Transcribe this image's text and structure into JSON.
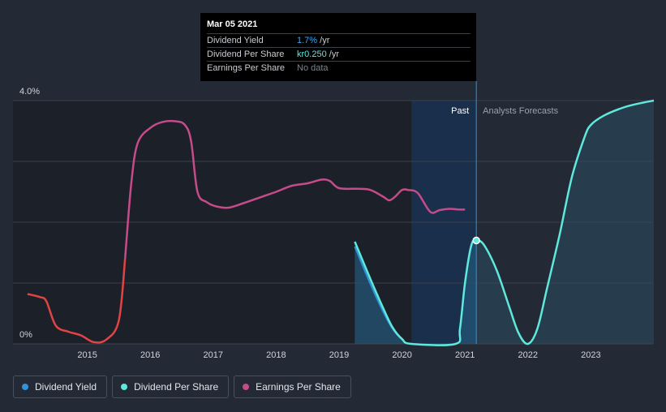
{
  "tooltip": {
    "date": "Mar 05 2021",
    "rows": [
      {
        "label": "Dividend Yield",
        "value": "1.7%",
        "suffix": " /yr",
        "color": "#2ea8ff"
      },
      {
        "label": "Dividend Per Share",
        "value": "kr0.250",
        "suffix": " /yr",
        "color": "#5fe8dc"
      },
      {
        "label": "Earnings Per Share",
        "value": "No data",
        "suffix": "",
        "color": "#7d828b"
      }
    ]
  },
  "labels": {
    "past": "Past",
    "forecast": "Analysts Forecasts"
  },
  "colors": {
    "background": "#232a36",
    "past_shade": "#1c2029",
    "dividend_yield": "#2e93d9",
    "dividend_per_share": "#5fe8dc",
    "earnings_per_share": "#c64b8b",
    "eps_negative": "#e04444",
    "grid": "#3a414d"
  },
  "legend": [
    {
      "label": "Dividend Yield",
      "color": "#2e93d9"
    },
    {
      "label": "Dividend Per Share",
      "color": "#5fe8dc"
    },
    {
      "label": "Earnings Per Share",
      "color": "#c64b8b"
    }
  ],
  "chart_data": {
    "type": "line",
    "ylim": [
      0,
      4.0
    ],
    "y_tick_labels": [
      {
        "value": 4.0,
        "label": "4.0%"
      },
      {
        "value": 0,
        "label": "0%"
      }
    ],
    "xlim": [
      2014.0,
      2024.0
    ],
    "x_ticks": [
      2015,
      2016,
      2017,
      2018,
      2019,
      2020,
      2021,
      2022,
      2023
    ],
    "past_region_start": 2014.0,
    "recent_region": [
      2020.15,
      2021.18
    ],
    "present_x": 2021.18,
    "highlight_point": {
      "x": 2021.18,
      "y": 1.7
    },
    "series": [
      {
        "name": "Earnings Per Share",
        "note": "relative scale; red segment marks lower earnings period",
        "negative_until_x": 2015.6,
        "points": [
          [
            2014.05,
            0.82
          ],
          [
            2014.25,
            0.77
          ],
          [
            2014.35,
            0.7
          ],
          [
            2014.5,
            0.3
          ],
          [
            2014.7,
            0.2
          ],
          [
            2014.9,
            0.14
          ],
          [
            2015.1,
            0.03
          ],
          [
            2015.3,
            0.07
          ],
          [
            2015.5,
            0.38
          ],
          [
            2015.6,
            1.4
          ],
          [
            2015.7,
            2.65
          ],
          [
            2015.8,
            3.3
          ],
          [
            2016.0,
            3.55
          ],
          [
            2016.2,
            3.65
          ],
          [
            2016.4,
            3.66
          ],
          [
            2016.55,
            3.6
          ],
          [
            2016.65,
            3.33
          ],
          [
            2016.75,
            2.5
          ],
          [
            2016.9,
            2.33
          ],
          [
            2017.05,
            2.26
          ],
          [
            2017.25,
            2.24
          ],
          [
            2017.5,
            2.32
          ],
          [
            2017.75,
            2.41
          ],
          [
            2018.0,
            2.5
          ],
          [
            2018.25,
            2.6
          ],
          [
            2018.5,
            2.64
          ],
          [
            2018.72,
            2.7
          ],
          [
            2018.85,
            2.68
          ],
          [
            2019.0,
            2.56
          ],
          [
            2019.3,
            2.55
          ],
          [
            2019.5,
            2.53
          ],
          [
            2019.7,
            2.42
          ],
          [
            2019.8,
            2.36
          ],
          [
            2019.9,
            2.43
          ],
          [
            2020.0,
            2.53
          ],
          [
            2020.1,
            2.53
          ],
          [
            2020.25,
            2.48
          ],
          [
            2020.45,
            2.17
          ],
          [
            2020.6,
            2.2
          ],
          [
            2020.75,
            2.22
          ],
          [
            2020.9,
            2.21
          ],
          [
            2021.0,
            2.21
          ]
        ]
      },
      {
        "name": "Dividend Yield",
        "points": [
          [
            2019.25,
            1.6
          ],
          [
            2019.5,
            0.98
          ],
          [
            2019.7,
            0.53
          ],
          [
            2019.85,
            0.25
          ],
          [
            2020.0,
            0.08
          ],
          [
            2020.15,
            0.0
          ],
          [
            2020.85,
            0.0
          ],
          [
            2020.92,
            0.25
          ],
          [
            2021.0,
            1.0
          ],
          [
            2021.1,
            1.62
          ],
          [
            2021.18,
            1.7
          ]
        ]
      },
      {
        "name": "Dividend Per Share",
        "points": [
          [
            2019.25,
            1.68
          ],
          [
            2019.5,
            1.06
          ],
          [
            2019.7,
            0.59
          ],
          [
            2019.85,
            0.27
          ],
          [
            2020.0,
            0.08
          ],
          [
            2020.15,
            0.0
          ],
          [
            2020.85,
            0.0
          ],
          [
            2020.92,
            0.25
          ],
          [
            2021.0,
            1.0
          ],
          [
            2021.1,
            1.62
          ],
          [
            2021.18,
            1.7
          ],
          [
            2021.3,
            1.63
          ],
          [
            2021.5,
            1.22
          ],
          [
            2021.7,
            0.62
          ],
          [
            2021.85,
            0.18
          ],
          [
            2022.0,
            0.0
          ],
          [
            2022.15,
            0.25
          ],
          [
            2022.3,
            0.9
          ],
          [
            2022.5,
            1.78
          ],
          [
            2022.7,
            2.75
          ],
          [
            2022.9,
            3.4
          ],
          [
            2023.0,
            3.6
          ],
          [
            2023.2,
            3.75
          ],
          [
            2023.5,
            3.88
          ],
          [
            2023.75,
            3.95
          ],
          [
            2024.0,
            4.0
          ]
        ]
      }
    ]
  }
}
